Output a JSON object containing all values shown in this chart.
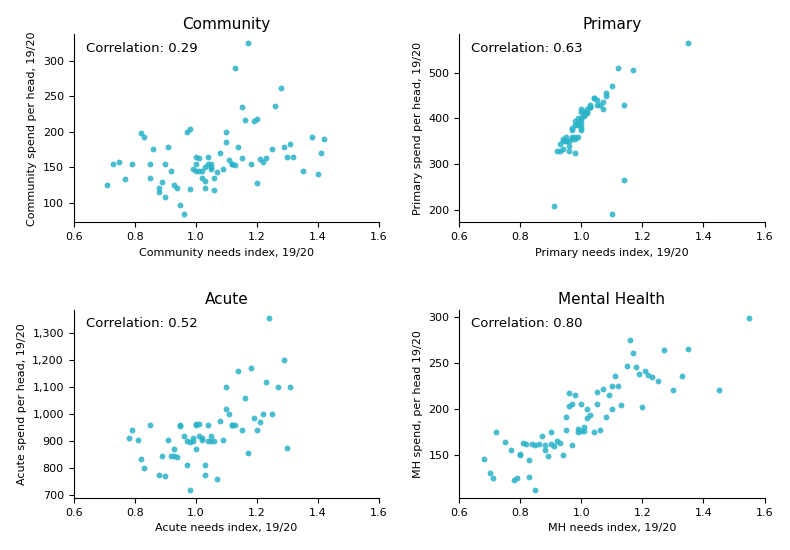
{
  "dot_color": "#2ab3c8",
  "dot_size": 18,
  "dot_alpha": 0.85,
  "xlim": [
    0.6,
    1.6
  ],
  "xticks": [
    0.6,
    0.8,
    1.0,
    1.2,
    1.4,
    1.6
  ],
  "subplots": [
    {
      "title": "Community",
      "xlabel": "Community needs index, 19/20",
      "ylabel": "Community spend per head, 19/20",
      "correlation": "Correlation: 0.29",
      "x": [
        0.71,
        0.73,
        0.75,
        0.77,
        0.79,
        0.82,
        0.83,
        0.85,
        0.85,
        0.86,
        0.88,
        0.88,
        0.89,
        0.9,
        0.9,
        0.91,
        0.92,
        0.93,
        0.94,
        0.95,
        0.96,
        0.97,
        0.98,
        0.98,
        0.99,
        1.0,
        1.0,
        1.0,
        1.01,
        1.01,
        1.02,
        1.02,
        1.03,
        1.03,
        1.03,
        1.04,
        1.04,
        1.05,
        1.05,
        1.05,
        1.06,
        1.06,
        1.07,
        1.08,
        1.09,
        1.1,
        1.1,
        1.11,
        1.12,
        1.12,
        1.13,
        1.13,
        1.14,
        1.15,
        1.15,
        1.16,
        1.17,
        1.18,
        1.19,
        1.2,
        1.2,
        1.21,
        1.22,
        1.23,
        1.25,
        1.26,
        1.28,
        1.29,
        1.3,
        1.31,
        1.32,
        1.35,
        1.38,
        1.4,
        1.41,
        1.42
      ],
      "y": [
        125,
        155,
        157,
        133,
        155,
        199,
        193,
        135,
        155,
        175,
        115,
        120,
        129,
        155,
        108,
        178,
        145,
        125,
        120,
        97,
        84,
        200,
        204,
        119,
        148,
        155,
        145,
        165,
        145,
        163,
        135,
        145,
        150,
        130,
        120,
        155,
        165,
        148,
        155,
        150,
        118,
        135,
        143,
        170,
        148,
        200,
        185,
        160,
        155,
        155,
        290,
        153,
        178,
        163,
        235,
        217,
        326,
        155,
        215,
        218,
        128,
        162,
        157,
        163,
        176,
        236,
        262,
        179,
        165,
        183,
        164,
        145,
        193,
        141,
        170,
        190
      ]
    },
    {
      "title": "Primary",
      "xlabel": "Primary needs index, 19/20",
      "ylabel": "Primary spend per head, 19/20",
      "correlation": "Correlation: 0.63",
      "x": [
        0.91,
        0.92,
        0.93,
        0.93,
        0.94,
        0.94,
        0.94,
        0.95,
        0.95,
        0.95,
        0.96,
        0.96,
        0.96,
        0.97,
        0.97,
        0.97,
        0.97,
        0.98,
        0.98,
        0.98,
        0.98,
        0.98,
        0.99,
        0.99,
        0.99,
        0.99,
        1.0,
        1.0,
        1.0,
        1.0,
        1.0,
        1.0,
        1.0,
        1.01,
        1.01,
        1.01,
        1.01,
        1.02,
        1.02,
        1.02,
        1.03,
        1.03,
        1.03,
        1.03,
        1.04,
        1.04,
        1.05,
        1.05,
        1.06,
        1.07,
        1.07,
        1.08,
        1.08,
        1.1,
        1.1,
        1.12,
        1.14,
        1.14,
        1.17,
        1.35
      ],
      "y": [
        210,
        330,
        330,
        345,
        350,
        355,
        333,
        360,
        350,
        350,
        350,
        340,
        330,
        360,
        356,
        375,
        380,
        325,
        360,
        395,
        385,
        355,
        400,
        390,
        385,
        360,
        400,
        420,
        415,
        395,
        380,
        385,
        375,
        415,
        405,
        408,
        415,
        415,
        420,
        412,
        425,
        430,
        425,
        425,
        445,
        445,
        440,
        430,
        430,
        420,
        435,
        448,
        455,
        192,
        470,
        510,
        265,
        430,
        505,
        565
      ]
    },
    {
      "title": "Acute",
      "xlabel": "Acute needs index, 19/20",
      "ylabel": "Acute spend per head, 19/20",
      "correlation": "Correlation: 0.52",
      "x": [
        0.78,
        0.79,
        0.81,
        0.82,
        0.83,
        0.85,
        0.88,
        0.89,
        0.9,
        0.91,
        0.92,
        0.93,
        0.93,
        0.94,
        0.95,
        0.95,
        0.96,
        0.97,
        0.97,
        0.98,
        0.98,
        0.99,
        0.99,
        1.0,
        1.0,
        1.0,
        1.01,
        1.01,
        1.02,
        1.02,
        1.03,
        1.03,
        1.04,
        1.04,
        1.05,
        1.05,
        1.06,
        1.07,
        1.08,
        1.09,
        1.1,
        1.1,
        1.11,
        1.12,
        1.12,
        1.13,
        1.14,
        1.15,
        1.16,
        1.17,
        1.18,
        1.19,
        1.2,
        1.21,
        1.22,
        1.23,
        1.24,
        1.25,
        1.27,
        1.29,
        1.3,
        1.31
      ],
      "y": [
        910,
        940,
        905,
        835,
        800,
        960,
        775,
        845,
        770,
        905,
        845,
        845,
        870,
        840,
        960,
        955,
        920,
        900,
        810,
        720,
        895,
        910,
        900,
        960,
        965,
        870,
        965,
        920,
        905,
        910,
        810,
        775,
        900,
        960,
        920,
        900,
        900,
        760,
        975,
        905,
        1020,
        1100,
        1000,
        960,
        960,
        960,
        1160,
        940,
        1060,
        855,
        1170,
        985,
        940,
        970,
        1000,
        1120,
        1355,
        1000,
        1100,
        1200,
        875,
        1100
      ]
    },
    {
      "title": "Mental Health",
      "xlabel": "MH needs index, 19/20",
      "ylabel": "MH spend, per head 19/20",
      "correlation": "Correlation: 0.80",
      "x": [
        0.68,
        0.7,
        0.71,
        0.72,
        0.75,
        0.77,
        0.78,
        0.79,
        0.8,
        0.8,
        0.81,
        0.82,
        0.83,
        0.83,
        0.84,
        0.85,
        0.85,
        0.86,
        0.87,
        0.88,
        0.88,
        0.89,
        0.9,
        0.9,
        0.91,
        0.92,
        0.93,
        0.94,
        0.95,
        0.95,
        0.96,
        0.96,
        0.97,
        0.97,
        0.98,
        0.99,
        0.99,
        1.0,
        1.0,
        1.01,
        1.01,
        1.02,
        1.02,
        1.03,
        1.04,
        1.05,
        1.05,
        1.06,
        1.07,
        1.08,
        1.09,
        1.1,
        1.1,
        1.11,
        1.12,
        1.13,
        1.15,
        1.16,
        1.17,
        1.18,
        1.19,
        1.2,
        1.21,
        1.22,
        1.23,
        1.25,
        1.27,
        1.3,
        1.33,
        1.35,
        1.45,
        1.55
      ],
      "y": [
        145,
        130,
        125,
        175,
        164,
        155,
        122,
        125,
        151,
        149,
        163,
        161,
        126,
        144,
        162,
        112,
        160,
        161,
        170,
        160,
        155,
        148,
        161,
        175,
        159,
        165,
        163,
        150,
        191,
        177,
        217,
        203,
        205,
        160,
        215,
        175,
        178,
        205,
        176,
        176,
        180,
        190,
        200,
        193,
        175,
        205,
        218,
        177,
        221,
        191,
        215,
        200,
        225,
        235,
        225,
        204,
        246,
        275,
        260,
        245,
        238,
        202,
        241,
        237,
        234,
        230,
        264,
        220,
        235,
        265,
        220,
        298
      ]
    }
  ]
}
